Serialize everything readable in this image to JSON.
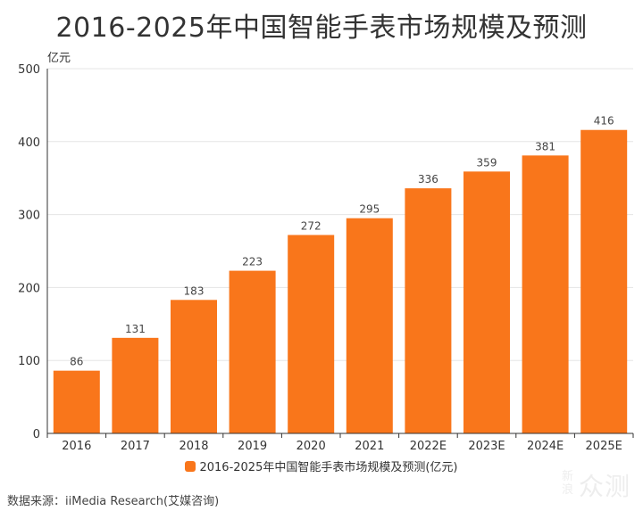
{
  "title": "2016-2025年中国智能手表市场规模及预测",
  "source": "数据来源：iiMedia Research(艾媒咨询)",
  "watermark": {
    "small": "新浪",
    "big": "众测"
  },
  "colors": {
    "bar": "#f9761b",
    "grid": "#e5e5e5",
    "axis": "#333333"
  },
  "chart_data": {
    "type": "bar",
    "title": "2016-2025年中国智能手表市场规模及预测",
    "ylabel": "亿元",
    "xlabel": "",
    "ylim": [
      0,
      500
    ],
    "yticks": [
      0,
      100,
      200,
      300,
      400,
      500
    ],
    "categories": [
      "2016",
      "2017",
      "2018",
      "2019",
      "2020",
      "2021",
      "2022E",
      "2023E",
      "2024E",
      "2025E"
    ],
    "series": [
      {
        "name": "2016-2025年中国智能手表市场规模及预测(亿元)",
        "values": [
          86,
          131,
          183,
          223,
          272,
          295,
          336,
          359,
          381,
          416
        ]
      }
    ],
    "legend": "bottom-center",
    "grid": true
  }
}
